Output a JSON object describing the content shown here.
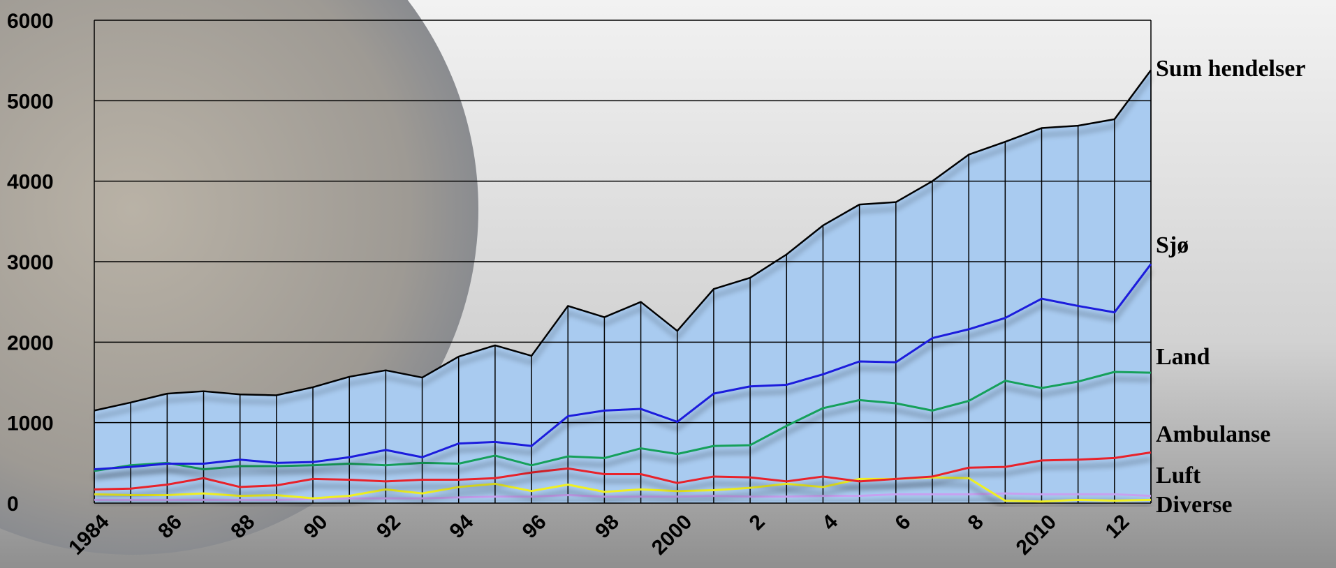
{
  "chart_data": {
    "type": "line",
    "categories": [
      "1984",
      null,
      "86",
      null,
      "88",
      null,
      "90",
      null,
      "92",
      null,
      "94",
      null,
      "96",
      null,
      "98",
      null,
      "2000",
      null,
      "2",
      null,
      "4",
      null,
      "6",
      null,
      "8",
      null,
      "2010",
      null,
      "12",
      null
    ],
    "series": [
      {
        "name": "Sum hendelser",
        "color": "#000000",
        "area_fill": "#a9cbf0",
        "values": [
          1150,
          1250,
          1360,
          1390,
          1350,
          1340,
          1440,
          1570,
          1650,
          1560,
          1820,
          1960,
          1830,
          2450,
          2310,
          2500,
          2140,
          2660,
          2800,
          3090,
          3450,
          3710,
          3740,
          4000,
          4330,
          4490,
          4660,
          4690,
          4770,
          5380
        ]
      },
      {
        "name": "Sjø",
        "color": "#1a1adc",
        "values": [
          420,
          450,
          490,
          490,
          540,
          500,
          510,
          570,
          660,
          570,
          740,
          760,
          710,
          1080,
          1150,
          1170,
          1010,
          1360,
          1450,
          1470,
          1600,
          1760,
          1750,
          2050,
          2160,
          2300,
          2540,
          2450,
          2370,
          2970
        ]
      },
      {
        "name": "Land",
        "color": "#12a05a",
        "values": [
          400,
          470,
          500,
          420,
          460,
          460,
          470,
          490,
          470,
          500,
          490,
          590,
          470,
          580,
          560,
          680,
          610,
          710,
          720,
          960,
          1180,
          1280,
          1240,
          1150,
          1270,
          1520,
          1430,
          1510,
          1630,
          1620
        ]
      },
      {
        "name": "Ambulanse",
        "color": "#e8202a",
        "values": [
          170,
          180,
          230,
          310,
          200,
          220,
          300,
          290,
          270,
          290,
          290,
          310,
          380,
          430,
          360,
          360,
          250,
          330,
          320,
          270,
          330,
          270,
          300,
          330,
          440,
          450,
          530,
          540,
          560,
          630
        ]
      },
      {
        "name": "Luft",
        "color": "#f0f020",
        "values": [
          110,
          100,
          100,
          120,
          90,
          100,
          60,
          90,
          170,
          120,
          200,
          240,
          150,
          230,
          140,
          170,
          150,
          160,
          190,
          240,
          200,
          300,
          300,
          320,
          310,
          30,
          20,
          40,
          30,
          40
        ]
      },
      {
        "name": "Diverse",
        "color": "#c8a0f0",
        "values": [
          40,
          40,
          40,
          40,
          40,
          40,
          50,
          60,
          60,
          60,
          70,
          80,
          80,
          100,
          80,
          80,
          80,
          90,
          80,
          80,
          90,
          90,
          110,
          110,
          110,
          120,
          110,
          110,
          110,
          90
        ]
      }
    ],
    "ylim": [
      0,
      6000
    ],
    "yticks": [
      0,
      1000,
      2000,
      3000,
      4000,
      5000,
      6000
    ],
    "grid": true
  }
}
